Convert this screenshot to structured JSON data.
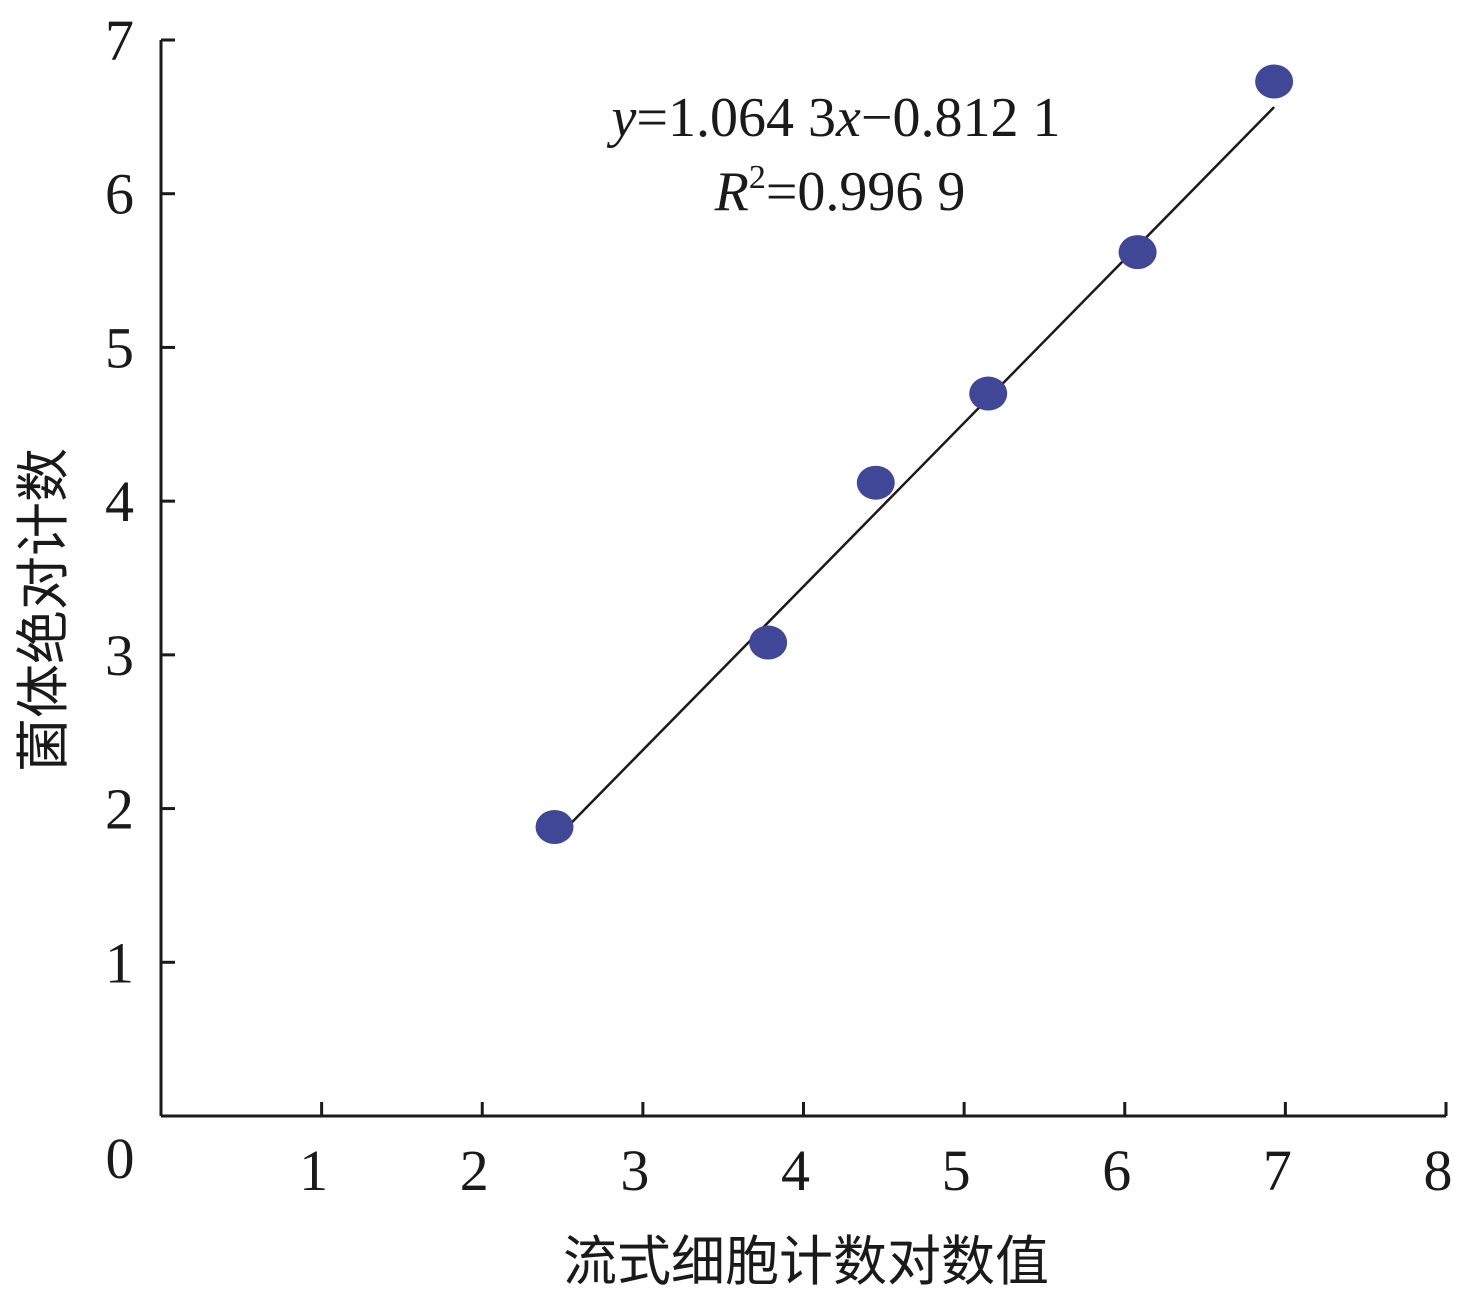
{
  "chart_data": {
    "type": "scatter",
    "xlabel": "流式细胞计数对数值",
    "ylabel": "菌体绝对计数",
    "xlim": [
      0,
      8
    ],
    "ylim": [
      0,
      7
    ],
    "xticks": [
      "1",
      "2",
      "3",
      "4",
      "5",
      "6",
      "7",
      "8"
    ],
    "yticks": [
      "1",
      "2",
      "3",
      "4",
      "5",
      "6",
      "7"
    ],
    "origin_label": "0",
    "grid": false,
    "legend": "none",
    "points": [
      {
        "x": 2.45,
        "y": 1.88
      },
      {
        "x": 3.78,
        "y": 3.08
      },
      {
        "x": 4.45,
        "y": 4.12
      },
      {
        "x": 5.15,
        "y": 4.7
      },
      {
        "x": 6.08,
        "y": 5.62
      },
      {
        "x": 6.93,
        "y": 6.73
      }
    ],
    "fit": {
      "slope": 1.0643,
      "intercept": -0.8121,
      "x_range": [
        2.45,
        6.93
      ],
      "equation": {
        "y": "y",
        "eq1": "=1.064 3",
        "x": "x",
        "eq2": "−0.812 1"
      },
      "r2": {
        "r": "R",
        "sup": "2",
        "value": "=0.996 9"
      }
    },
    "colors": {
      "point": "#3f4796",
      "line": "#1a1a1a"
    }
  }
}
